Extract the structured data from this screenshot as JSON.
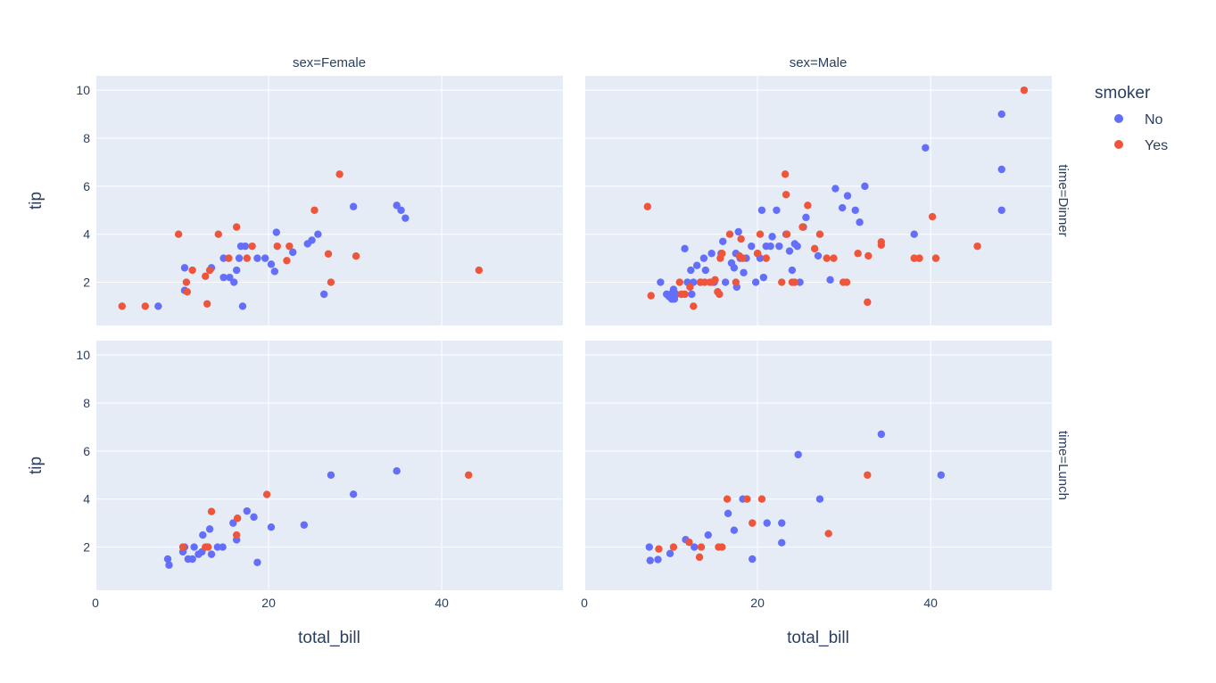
{
  "chart_data": {
    "type": "scatter",
    "x_label": "total_bill",
    "y_label": "tip",
    "xlim": [
      0,
      54
    ],
    "ylim": [
      0.2,
      10.6
    ],
    "x_ticks": [
      0,
      20,
      40
    ],
    "y_ticks": [
      2,
      4,
      6,
      8,
      10
    ],
    "grid": true,
    "legend": {
      "title": "smoker",
      "placement": "top-right",
      "items": [
        {
          "name": "No",
          "color": "#636efa"
        },
        {
          "name": "Yes",
          "color": "#ef553b"
        }
      ]
    },
    "column_facets": [
      "sex=Female",
      "sex=Male"
    ],
    "row_facets": [
      "time=Dinner",
      "time=Lunch"
    ],
    "panels": [
      {
        "column": "sex=Female",
        "row": "time=Dinner",
        "series": [
          {
            "name": "No",
            "points": [
              [
                7.25,
                1.0
              ],
              [
                10.3,
                1.66
              ],
              [
                10.3,
                2.6
              ],
              [
                13.4,
                2.6
              ],
              [
                14.8,
                3.0
              ],
              [
                14.8,
                2.2
              ],
              [
                15.5,
                2.2
              ],
              [
                16.0,
                2.0
              ],
              [
                16.3,
                2.5
              ],
              [
                16.6,
                3.0
              ],
              [
                16.8,
                3.5
              ],
              [
                17.0,
                1.0
              ],
              [
                17.3,
                3.5
              ],
              [
                18.7,
                3.0
              ],
              [
                19.6,
                3.0
              ],
              [
                20.3,
                2.75
              ],
              [
                20.7,
                2.45
              ],
              [
                20.9,
                4.08
              ],
              [
                22.8,
                3.25
              ],
              [
                24.5,
                3.6
              ],
              [
                25.0,
                3.75
              ],
              [
                25.7,
                4.0
              ],
              [
                26.4,
                1.5
              ],
              [
                29.8,
                5.15
              ],
              [
                34.8,
                5.2
              ],
              [
                35.3,
                5.0
              ],
              [
                35.8,
                4.67
              ]
            ]
          },
          {
            "name": "Yes",
            "points": [
              [
                3.07,
                1.0
              ],
              [
                5.75,
                1.0
              ],
              [
                9.6,
                4.0
              ],
              [
                10.5,
                2.0
              ],
              [
                10.6,
                1.6
              ],
              [
                11.2,
                2.5
              ],
              [
                12.7,
                2.25
              ],
              [
                12.9,
                1.1
              ],
              [
                13.2,
                2.5
              ],
              [
                14.2,
                4.0
              ],
              [
                15.4,
                3.0
              ],
              [
                16.3,
                4.3
              ],
              [
                17.5,
                3.0
              ],
              [
                18.1,
                3.5
              ],
              [
                21.0,
                3.5
              ],
              [
                22.1,
                2.9
              ],
              [
                22.4,
                3.5
              ],
              [
                25.3,
                5.0
              ],
              [
                26.9,
                3.18
              ],
              [
                27.2,
                2.0
              ],
              [
                28.2,
                6.5
              ],
              [
                30.1,
                3.09
              ],
              [
                44.3,
                2.5
              ]
            ]
          }
        ]
      },
      {
        "column": "sex=Male",
        "row": "time=Dinner",
        "series": [
          {
            "name": "No",
            "points": [
              [
                8.8,
                2.0
              ],
              [
                9.5,
                1.5
              ],
              [
                9.8,
                1.4
              ],
              [
                10.0,
                1.5
              ],
              [
                10.1,
                1.3
              ],
              [
                10.3,
                1.7
              ],
              [
                10.4,
                1.3
              ],
              [
                10.6,
                1.5
              ],
              [
                11.6,
                3.4
              ],
              [
                11.9,
                2.0
              ],
              [
                12.3,
                2.5
              ],
              [
                12.4,
                1.5
              ],
              [
                12.6,
                2.0
              ],
              [
                13.0,
                2.7
              ],
              [
                13.4,
                2.0
              ],
              [
                13.8,
                3.0
              ],
              [
                14.0,
                2.5
              ],
              [
                14.7,
                3.2
              ],
              [
                15.0,
                2.0
              ],
              [
                15.4,
                1.6
              ],
              [
                15.8,
                3.2
              ],
              [
                16.0,
                3.7
              ],
              [
                16.3,
                2.0
              ],
              [
                17.0,
                2.8
              ],
              [
                17.3,
                2.6
              ],
              [
                17.5,
                3.2
              ],
              [
                17.6,
                1.8
              ],
              [
                17.8,
                4.1
              ],
              [
                18.0,
                3.0
              ],
              [
                18.4,
                2.4
              ],
              [
                18.7,
                3.0
              ],
              [
                19.3,
                3.5
              ],
              [
                19.8,
                2.0
              ],
              [
                20.0,
                3.2
              ],
              [
                20.3,
                3.0
              ],
              [
                20.5,
                5.0
              ],
              [
                20.7,
                2.2
              ],
              [
                21.0,
                3.5
              ],
              [
                21.5,
                3.5
              ],
              [
                21.7,
                3.9
              ],
              [
                22.2,
                5.0
              ],
              [
                22.5,
                3.5
              ],
              [
                23.3,
                4.0
              ],
              [
                23.7,
                3.3
              ],
              [
                24.0,
                2.5
              ],
              [
                24.3,
                3.6
              ],
              [
                24.6,
                3.5
              ],
              [
                24.9,
                2.0
              ],
              [
                25.3,
                4.3
              ],
              [
                25.6,
                4.7
              ],
              [
                27.0,
                3.1
              ],
              [
                28.4,
                2.1
              ],
              [
                29.0,
                5.9
              ],
              [
                29.8,
                5.1
              ],
              [
                30.4,
                5.6
              ],
              [
                31.3,
                5.0
              ],
              [
                31.8,
                4.5
              ],
              [
                32.4,
                6.0
              ],
              [
                38.1,
                4.0
              ],
              [
                39.4,
                7.6
              ],
              [
                48.2,
                9.0
              ],
              [
                48.2,
                6.7
              ],
              [
                48.2,
                5.0
              ]
            ]
          },
          {
            "name": "Yes",
            "points": [
              [
                7.3,
                5.15
              ],
              [
                7.7,
                1.44
              ],
              [
                11.0,
                2.0
              ],
              [
                11.2,
                1.5
              ],
              [
                11.6,
                1.5
              ],
              [
                12.2,
                1.8
              ],
              [
                12.6,
                1.0
              ],
              [
                13.4,
                2.0
              ],
              [
                13.9,
                2.0
              ],
              [
                14.5,
                2.0
              ],
              [
                14.8,
                2.0
              ],
              [
                15.1,
                2.1
              ],
              [
                15.4,
                1.6
              ],
              [
                15.6,
                1.5
              ],
              [
                15.7,
                3.0
              ],
              [
                15.9,
                3.2
              ],
              [
                16.8,
                4.0
              ],
              [
                17.5,
                2.0
              ],
              [
                17.9,
                3.1
              ],
              [
                18.1,
                3.8
              ],
              [
                18.3,
                3.0
              ],
              [
                20.0,
                3.2
              ],
              [
                20.3,
                4.0
              ],
              [
                21.0,
                3.0
              ],
              [
                22.8,
                2.0
              ],
              [
                23.2,
                6.5
              ],
              [
                23.3,
                5.65
              ],
              [
                23.4,
                4.0
              ],
              [
                24.0,
                2.0
              ],
              [
                24.3,
                2.0
              ],
              [
                25.2,
                4.3
              ],
              [
                25.8,
                5.2
              ],
              [
                26.6,
                3.4
              ],
              [
                27.2,
                4.0
              ],
              [
                28.0,
                3.0
              ],
              [
                28.8,
                3.0
              ],
              [
                29.9,
                2.0
              ],
              [
                30.3,
                2.0
              ],
              [
                31.6,
                3.2
              ],
              [
                32.7,
                1.17
              ],
              [
                32.8,
                3.1
              ],
              [
                34.3,
                3.55
              ],
              [
                34.3,
                3.68
              ],
              [
                38.1,
                3.0
              ],
              [
                38.7,
                3.0
              ],
              [
                40.2,
                4.73
              ],
              [
                40.6,
                3.0
              ],
              [
                45.4,
                3.5
              ],
              [
                50.8,
                10.0
              ]
            ]
          }
        ]
      },
      {
        "column": "sex=Female",
        "row": "time=Lunch",
        "series": [
          {
            "name": "No",
            "points": [
              [
                8.35,
                1.5
              ],
              [
                8.5,
                1.25
              ],
              [
                10.1,
                1.8
              ],
              [
                10.3,
                2.0
              ],
              [
                10.7,
                1.5
              ],
              [
                11.2,
                1.5
              ],
              [
                11.4,
                2.0
              ],
              [
                11.9,
                1.7
              ],
              [
                12.3,
                1.8
              ],
              [
                12.4,
                2.5
              ],
              [
                13.0,
                2.0
              ],
              [
                13.2,
                2.75
              ],
              [
                13.4,
                1.7
              ],
              [
                14.1,
                2.0
              ],
              [
                14.7,
                2.0
              ],
              [
                15.9,
                3.0
              ],
              [
                16.3,
                2.3
              ],
              [
                17.5,
                3.5
              ],
              [
                18.3,
                3.25
              ],
              [
                18.7,
                1.36
              ],
              [
                20.3,
                2.83
              ],
              [
                24.1,
                2.92
              ],
              [
                27.2,
                5.0
              ],
              [
                29.8,
                4.2
              ],
              [
                34.8,
                5.17
              ]
            ]
          },
          {
            "name": "Yes",
            "points": [
              [
                10.1,
                2.0
              ],
              [
                12.7,
                2.0
              ],
              [
                13.0,
                2.0
              ],
              [
                13.4,
                3.48
              ],
              [
                16.3,
                2.5
              ],
              [
                16.4,
                3.2
              ],
              [
                19.8,
                4.19
              ],
              [
                43.1,
                5.0
              ]
            ]
          }
        ]
      },
      {
        "column": "sex=Male",
        "row": "time=Lunch",
        "series": [
          {
            "name": "No",
            "points": [
              [
                7.5,
                2.0
              ],
              [
                7.6,
                1.44
              ],
              [
                8.5,
                1.48
              ],
              [
                9.9,
                1.73
              ],
              [
                11.7,
                2.31
              ],
              [
                12.7,
                2.0
              ],
              [
                16.6,
                3.4
              ],
              [
                17.3,
                2.7
              ],
              [
                14.3,
                2.5
              ],
              [
                18.3,
                4.0
              ],
              [
                19.4,
                1.5
              ],
              [
                21.1,
                3.0
              ],
              [
                22.8,
                2.18
              ],
              [
                22.8,
                3.0
              ],
              [
                24.7,
                5.85
              ],
              [
                27.2,
                4.0
              ],
              [
                34.3,
                6.7
              ],
              [
                41.2,
                5.0
              ]
            ]
          },
          {
            "name": "Yes",
            "points": [
              [
                8.6,
                1.92
              ],
              [
                10.3,
                2.0
              ],
              [
                12.1,
                2.2
              ],
              [
                13.3,
                1.58
              ],
              [
                13.5,
                2.0
              ],
              [
                15.5,
                2.0
              ],
              [
                15.9,
                2.0
              ],
              [
                16.5,
                4.0
              ],
              [
                18.8,
                4.0
              ],
              [
                19.4,
                3.0
              ],
              [
                20.5,
                4.0
              ],
              [
                28.2,
                2.56
              ],
              [
                32.7,
                5.0
              ]
            ]
          }
        ]
      }
    ]
  }
}
